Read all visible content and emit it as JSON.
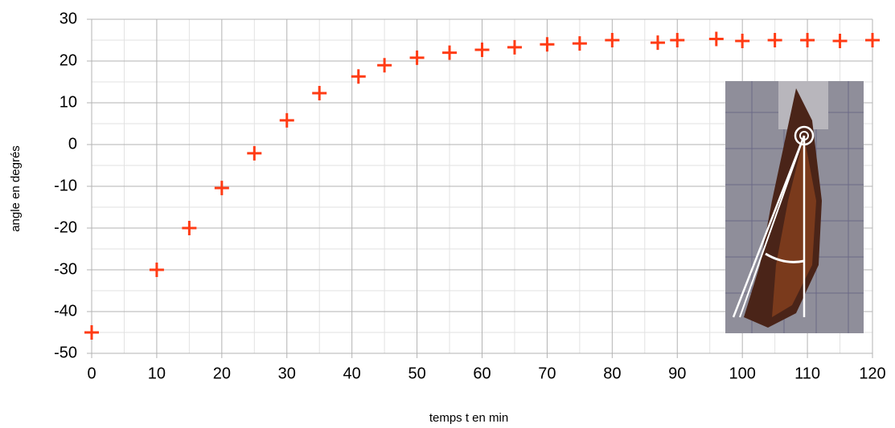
{
  "chart_data": {
    "type": "scatter",
    "x_label": "temps t en min",
    "y_label": "angle en degrés",
    "series": [
      {
        "color": "#ff3b14",
        "x": [
          0,
          10,
          15,
          20,
          25,
          30,
          35,
          41,
          45,
          50,
          55,
          60,
          65,
          70,
          75,
          80,
          87,
          90,
          96,
          100,
          105,
          110,
          115,
          120
        ],
        "values": [
          -45,
          -30,
          -20,
          -10.4,
          -2.1,
          5.8,
          12.3,
          16.3,
          19,
          20.8,
          22,
          22.7,
          23.3,
          24,
          24.2,
          25,
          24.4,
          25,
          25.3,
          24.8,
          25,
          25,
          24.8,
          25
        ]
      }
    ],
    "xlim": [
      0,
      120
    ],
    "xticks": [
      0,
      10,
      20,
      30,
      40,
      50,
      60,
      70,
      80,
      90,
      100,
      110,
      120
    ],
    "ylim": [
      -50,
      30
    ],
    "yticks": [
      -50,
      -40,
      -30,
      -20,
      -10,
      0,
      10,
      20,
      30
    ],
    "grid": true
  }
}
